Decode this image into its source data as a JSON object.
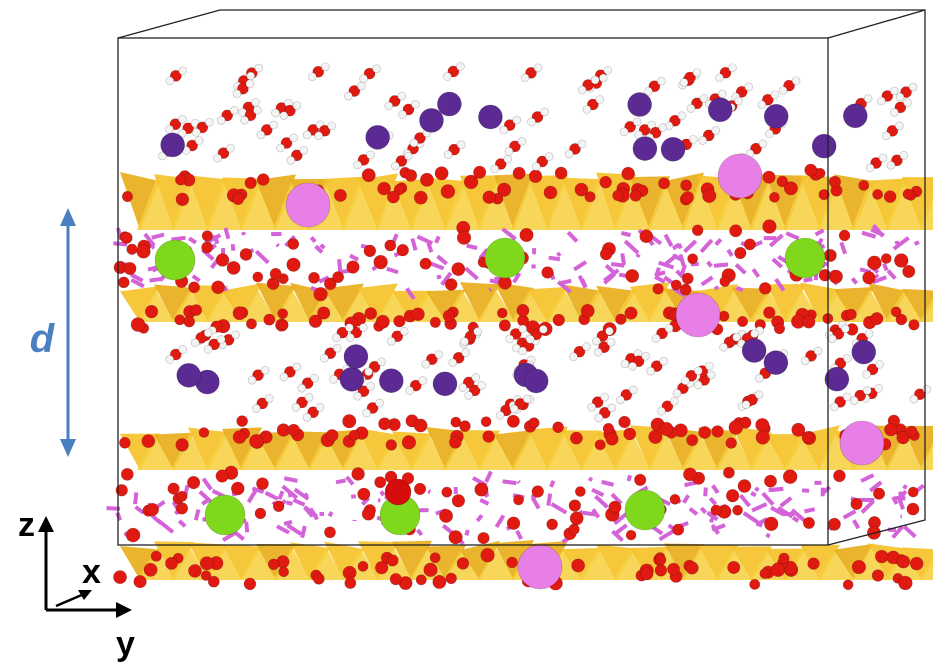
{
  "labels": {
    "spacing": "d",
    "axis_z": "z",
    "axis_x": "x",
    "axis_y": "y"
  }
}
